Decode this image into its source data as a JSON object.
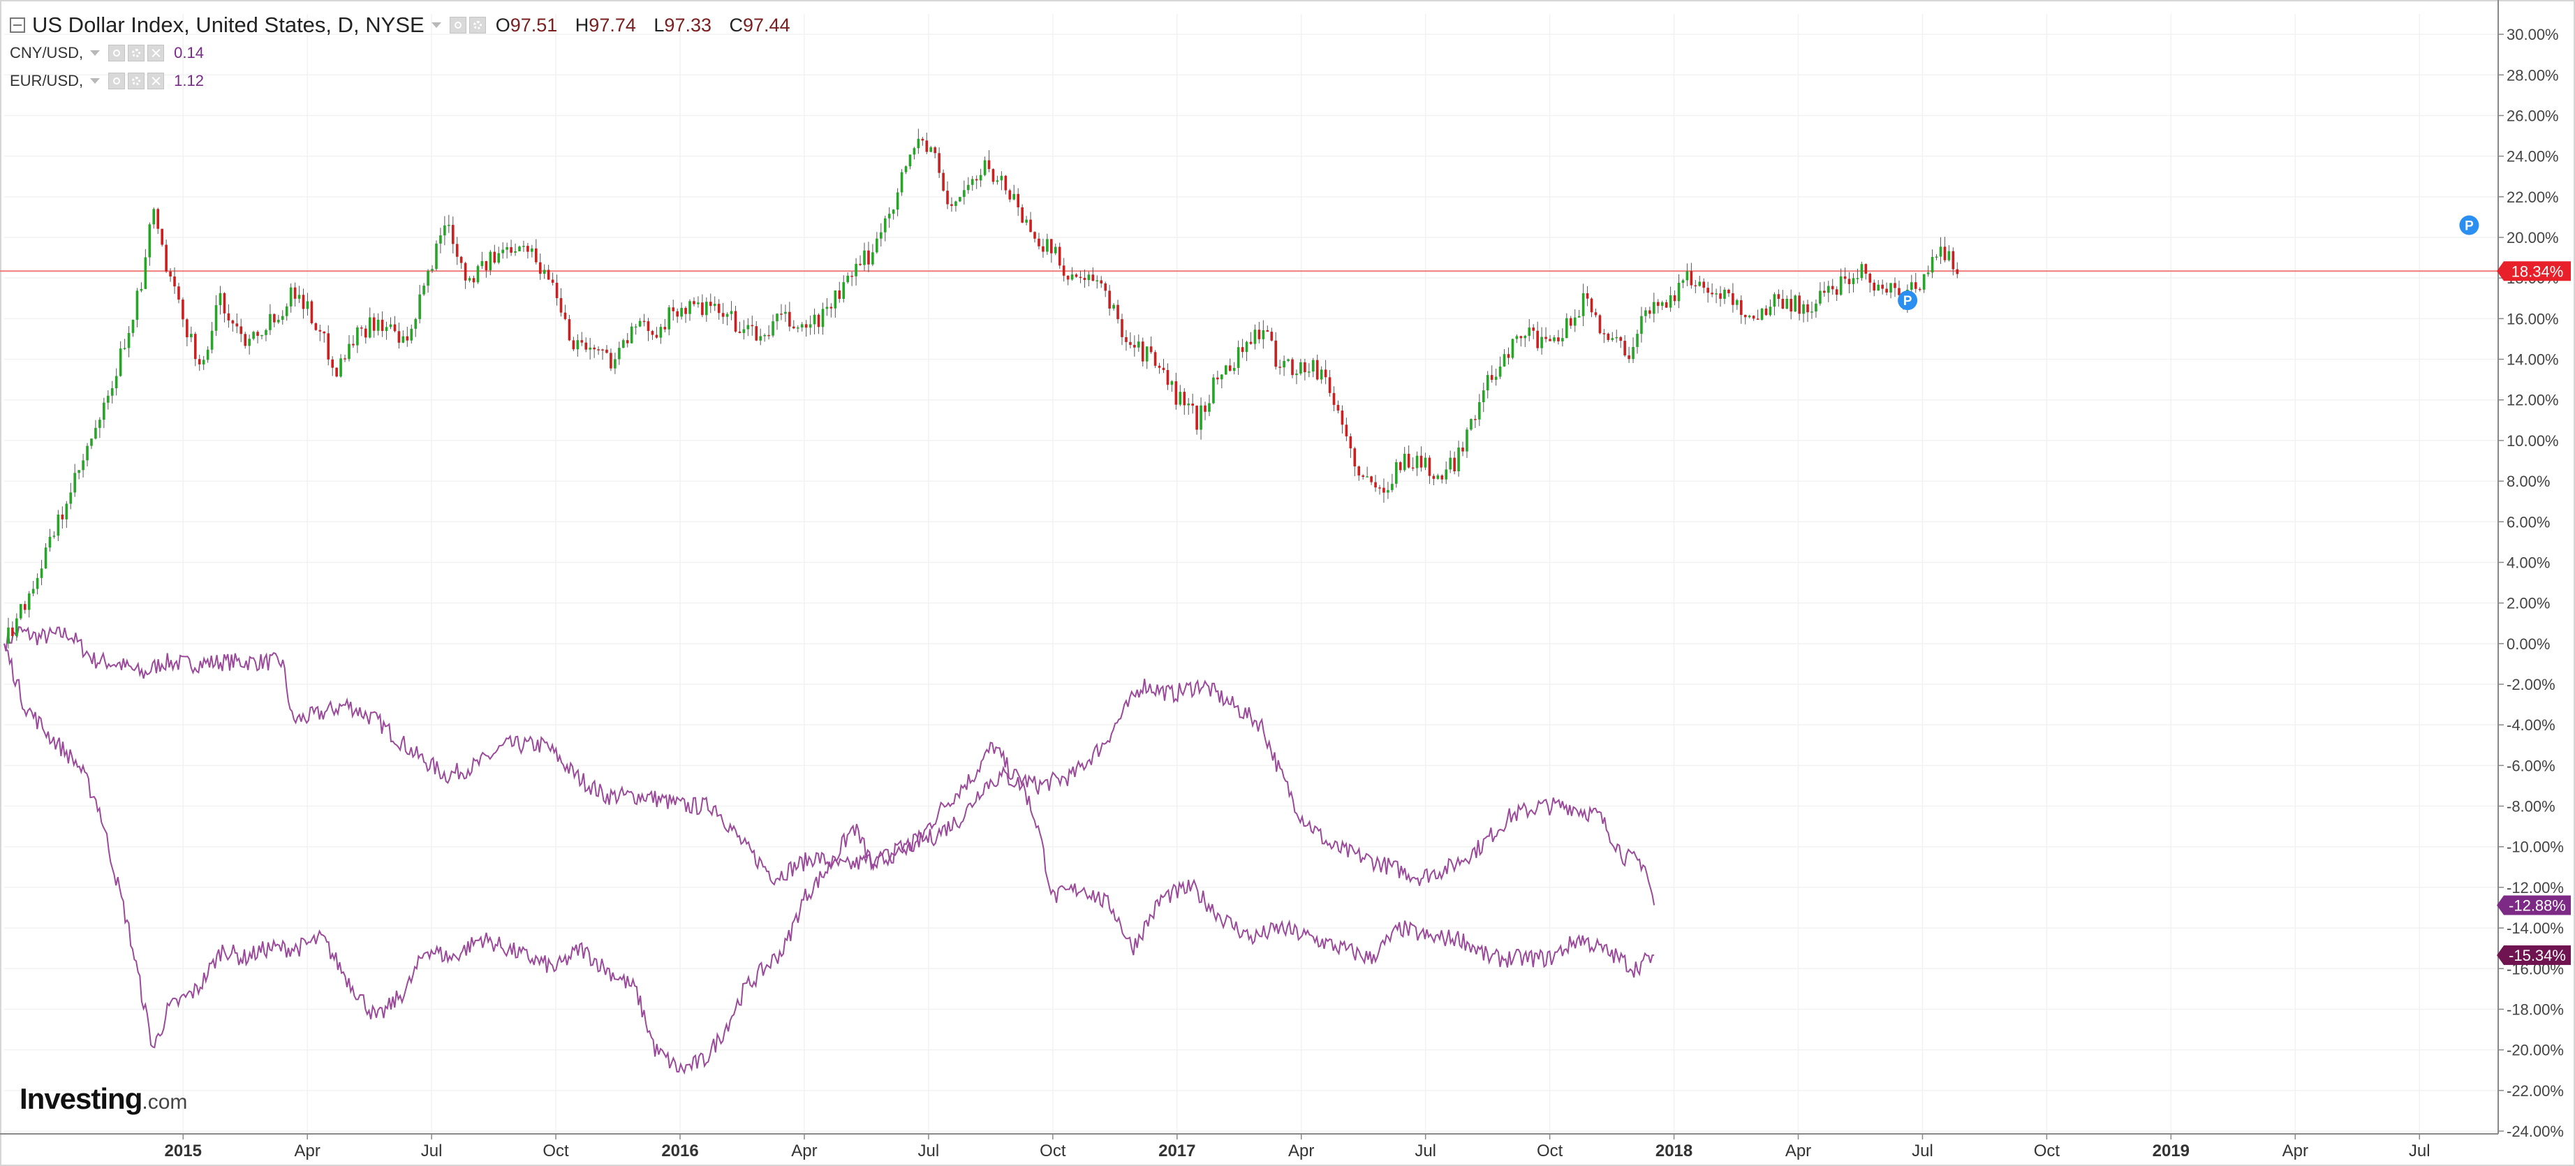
{
  "legend": {
    "main": {
      "title": "US Dollar Index, United States, D, NYSE",
      "o_label": "O",
      "o": "97.51",
      "h_label": "H",
      "h": "97.74",
      "l_label": "L",
      "l": "97.33",
      "c_label": "C",
      "c": "97.44"
    },
    "series1": {
      "name": "CNY/USD,",
      "value": "0.14"
    },
    "series2": {
      "name": "EUR/USD,",
      "value": "1.12"
    }
  },
  "logo": {
    "part1": "Investing",
    "part2": ".com"
  },
  "icons": {
    "collapse": "collapse-icon",
    "visibility": "eye-icon",
    "settings": "gear-icon",
    "remove": "close-icon",
    "marker": "p-marker-icon"
  },
  "colors": {
    "up": "#26a626",
    "down": "#cc1f1f",
    "compare": "#9b4a9b",
    "price_line": "#f07a7a",
    "price_badge": "#e8202a",
    "cny_badge": "#7d2a86",
    "eur_badge": "#6f1450",
    "marker": "#2a8ff0"
  },
  "chart_data": {
    "type": "line",
    "title": "US Dollar Index, United States, D, NYSE",
    "ylim": [
      -24,
      31
    ],
    "y_unit": "%",
    "grid": true,
    "legend_position": "top-left",
    "y_ticks": [
      "30.00%",
      "28.00%",
      "26.00%",
      "24.00%",
      "22.00%",
      "20.00%",
      "18.00%",
      "16.00%",
      "14.00%",
      "12.00%",
      "10.00%",
      "8.00%",
      "6.00%",
      "4.00%",
      "2.00%",
      "0.00%",
      "-2.00%",
      "-4.00%",
      "-6.00%",
      "-8.00%",
      "-10.00%",
      "-12.00%",
      "-14.00%",
      "-16.00%",
      "-18.00%",
      "-20.00%",
      "-22.00%",
      "-24.00%"
    ],
    "x_ticks": [
      {
        "label": "2015",
        "t": 0.25,
        "bold": true
      },
      {
        "label": "Apr",
        "t": 0.5,
        "bold": false
      },
      {
        "label": "Jul",
        "t": 0.75,
        "bold": false
      },
      {
        "label": "Oct",
        "t": 1.0,
        "bold": false
      },
      {
        "label": "2016",
        "t": 1.25,
        "bold": true
      },
      {
        "label": "Apr",
        "t": 1.5,
        "bold": false
      },
      {
        "label": "Jul",
        "t": 1.75,
        "bold": false
      },
      {
        "label": "Oct",
        "t": 2.0,
        "bold": false
      },
      {
        "label": "2017",
        "t": 2.25,
        "bold": true
      },
      {
        "label": "Apr",
        "t": 2.5,
        "bold": false
      },
      {
        "label": "Jul",
        "t": 2.75,
        "bold": false
      },
      {
        "label": "Oct",
        "t": 3.0,
        "bold": false
      },
      {
        "label": "2018",
        "t": 3.25,
        "bold": true
      },
      {
        "label": "Apr",
        "t": 3.5,
        "bold": false
      },
      {
        "label": "Jul",
        "t": 3.75,
        "bold": false
      },
      {
        "label": "Oct",
        "t": 4.0,
        "bold": false
      },
      {
        "label": "2019",
        "t": 4.25,
        "bold": true
      },
      {
        "label": "Apr",
        "t": 4.5,
        "bold": false
      },
      {
        "label": "Jul",
        "t": 4.75,
        "bold": false
      }
    ],
    "x_range": [
      -0.11,
      4.9
    ],
    "series": [
      {
        "name": "US Dollar Index",
        "style": "candles",
        "points": [
          [
            -0.11,
            0
          ],
          [
            -0.05,
            3
          ],
          [
            0.0,
            6
          ],
          [
            0.05,
            9
          ],
          [
            0.1,
            12
          ],
          [
            0.14,
            15.5
          ],
          [
            0.17,
            18
          ],
          [
            0.19,
            21.5
          ],
          [
            0.22,
            18
          ],
          [
            0.25,
            16
          ],
          [
            0.29,
            13.5
          ],
          [
            0.32,
            17
          ],
          [
            0.37,
            15
          ],
          [
            0.43,
            16
          ],
          [
            0.48,
            17.5
          ],
          [
            0.53,
            15
          ],
          [
            0.56,
            13.5
          ],
          [
            0.59,
            15
          ],
          [
            0.64,
            16
          ],
          [
            0.7,
            14.5
          ],
          [
            0.74,
            18
          ],
          [
            0.78,
            21
          ],
          [
            0.82,
            18
          ],
          [
            0.88,
            19
          ],
          [
            0.93,
            20
          ],
          [
            0.97,
            18.5
          ],
          [
            1.0,
            17.5
          ],
          [
            1.03,
            15
          ],
          [
            1.08,
            14.5
          ],
          [
            1.11,
            14
          ],
          [
            1.16,
            15.5
          ],
          [
            1.2,
            15.5
          ],
          [
            1.25,
            16.5
          ],
          [
            1.3,
            16.5
          ],
          [
            1.35,
            16
          ],
          [
            1.41,
            15
          ],
          [
            1.45,
            16
          ],
          [
            1.5,
            15.5
          ],
          [
            1.53,
            16
          ],
          [
            1.58,
            17.5
          ],
          [
            1.64,
            19.5
          ],
          [
            1.69,
            22.5
          ],
          [
            1.73,
            25
          ],
          [
            1.76,
            24
          ],
          [
            1.79,
            21.5
          ],
          [
            1.83,
            22.5
          ],
          [
            1.87,
            23.5
          ],
          [
            1.92,
            22
          ],
          [
            1.95,
            20.5
          ],
          [
            1.99,
            19.5
          ],
          [
            2.04,
            18
          ],
          [
            2.1,
            17.5
          ],
          [
            2.15,
            15
          ],
          [
            2.2,
            14
          ],
          [
            2.24,
            12.5
          ],
          [
            2.29,
            11
          ],
          [
            2.33,
            13
          ],
          [
            2.38,
            14.5
          ],
          [
            2.42,
            15.5
          ],
          [
            2.45,
            14
          ],
          [
            2.5,
            13.5
          ],
          [
            2.54,
            13.5
          ],
          [
            2.58,
            11
          ],
          [
            2.62,
            8
          ],
          [
            2.66,
            7.5
          ],
          [
            2.7,
            9
          ],
          [
            2.74,
            9
          ],
          [
            2.78,
            8
          ],
          [
            2.81,
            9
          ],
          [
            2.85,
            11.5
          ],
          [
            2.9,
            14
          ],
          [
            2.95,
            15.5
          ],
          [
            2.99,
            14.5
          ],
          [
            3.02,
            15
          ],
          [
            3.07,
            17
          ],
          [
            3.12,
            15
          ],
          [
            3.16,
            14.5
          ],
          [
            3.2,
            16.5
          ],
          [
            3.24,
            17
          ],
          [
            3.28,
            18
          ],
          [
            3.32,
            17.5
          ],
          [
            3.36,
            17
          ],
          [
            3.41,
            16
          ],
          [
            3.46,
            17
          ],
          [
            3.52,
            16.5
          ],
          [
            3.57,
            17.5
          ],
          [
            3.62,
            18.5
          ],
          [
            3.67,
            17.5
          ],
          [
            3.71,
            17
          ],
          [
            3.76,
            18.3
          ],
          [
            3.79,
            19.5
          ],
          [
            3.82,
            18.3
          ]
        ]
      },
      {
        "name": "CNY/USD",
        "style": "line",
        "points": [
          [
            -0.11,
            0
          ],
          [
            -0.08,
            0.6
          ],
          [
            -0.04,
            0.3
          ],
          [
            0.02,
            0.5
          ],
          [
            0.07,
            -0.8
          ],
          [
            0.12,
            -1
          ],
          [
            0.17,
            -1.5
          ],
          [
            0.21,
            -0.9
          ],
          [
            0.26,
            -1
          ],
          [
            0.33,
            -0.9
          ],
          [
            0.45,
            -0.9
          ],
          [
            0.47,
            -3.8
          ],
          [
            0.52,
            -3.5
          ],
          [
            0.58,
            -3
          ],
          [
            0.64,
            -3.8
          ],
          [
            0.72,
            -5.5
          ],
          [
            0.78,
            -6.5
          ],
          [
            0.84,
            -6
          ],
          [
            0.9,
            -5
          ],
          [
            0.98,
            -5
          ],
          [
            1.04,
            -6.5
          ],
          [
            1.1,
            -7.5
          ],
          [
            1.18,
            -7.5
          ],
          [
            1.26,
            -8
          ],
          [
            1.32,
            -8
          ],
          [
            1.38,
            -10
          ],
          [
            1.44,
            -11.5
          ],
          [
            1.52,
            -10.5
          ],
          [
            1.58,
            -11
          ],
          [
            1.66,
            -10.5
          ],
          [
            1.72,
            -10
          ],
          [
            1.78,
            -8
          ],
          [
            1.84,
            -6.5
          ],
          [
            1.88,
            -5
          ],
          [
            1.92,
            -6.5
          ],
          [
            1.97,
            -7
          ],
          [
            2.04,
            -6.5
          ],
          [
            2.1,
            -5
          ],
          [
            2.14,
            -3.5
          ],
          [
            2.18,
            -2
          ],
          [
            2.24,
            -2.5
          ],
          [
            2.3,
            -2
          ],
          [
            2.36,
            -3
          ],
          [
            2.42,
            -4
          ],
          [
            2.46,
            -6.5
          ],
          [
            2.5,
            -8.5
          ],
          [
            2.56,
            -10
          ],
          [
            2.62,
            -10.5
          ],
          [
            2.68,
            -11
          ],
          [
            2.74,
            -11.5
          ],
          [
            2.8,
            -11
          ],
          [
            2.86,
            -10
          ],
          [
            2.92,
            -8.5
          ],
          [
            2.98,
            -8
          ],
          [
            3.04,
            -8
          ],
          [
            3.1,
            -8.5
          ],
          [
            3.15,
            -10.5
          ],
          [
            3.19,
            -10.8
          ],
          [
            3.21,
            -12.88
          ]
        ]
      },
      {
        "name": "EUR/USD",
        "style": "line",
        "points": [
          [
            -0.11,
            0
          ],
          [
            -0.07,
            -3
          ],
          [
            -0.02,
            -4.5
          ],
          [
            0.04,
            -6
          ],
          [
            0.08,
            -8
          ],
          [
            0.12,
            -12
          ],
          [
            0.14,
            -14
          ],
          [
            0.19,
            -20
          ],
          [
            0.22,
            -18
          ],
          [
            0.28,
            -17
          ],
          [
            0.33,
            -15
          ],
          [
            0.37,
            -15.5
          ],
          [
            0.42,
            -15
          ],
          [
            0.48,
            -15
          ],
          [
            0.53,
            -14.5
          ],
          [
            0.58,
            -16.5
          ],
          [
            0.64,
            -18.5
          ],
          [
            0.7,
            -17
          ],
          [
            0.74,
            -15
          ],
          [
            0.79,
            -15.5
          ],
          [
            0.85,
            -14.5
          ],
          [
            0.9,
            -15
          ],
          [
            0.95,
            -15.5
          ],
          [
            1.0,
            -16
          ],
          [
            1.05,
            -15
          ],
          [
            1.1,
            -16
          ],
          [
            1.16,
            -17
          ],
          [
            1.2,
            -20
          ],
          [
            1.25,
            -21
          ],
          [
            1.3,
            -20.5
          ],
          [
            1.34,
            -19
          ],
          [
            1.38,
            -17
          ],
          [
            1.42,
            -16
          ],
          [
            1.46,
            -15
          ],
          [
            1.5,
            -12.5
          ],
          [
            1.55,
            -11
          ],
          [
            1.6,
            -9
          ],
          [
            1.64,
            -11
          ],
          [
            1.7,
            -10
          ],
          [
            1.76,
            -9.5
          ],
          [
            1.82,
            -8.5
          ],
          [
            1.86,
            -7
          ],
          [
            1.9,
            -6.5
          ],
          [
            1.94,
            -7
          ],
          [
            1.97,
            -9
          ],
          [
            2.0,
            -12.5
          ],
          [
            2.06,
            -12
          ],
          [
            2.12,
            -13
          ],
          [
            2.16,
            -15
          ],
          [
            2.22,
            -12.5
          ],
          [
            2.28,
            -12
          ],
          [
            2.34,
            -13.5
          ],
          [
            2.4,
            -14.5
          ],
          [
            2.46,
            -14
          ],
          [
            2.52,
            -14.5
          ],
          [
            2.58,
            -15
          ],
          [
            2.64,
            -15.5
          ],
          [
            2.7,
            -14
          ],
          [
            2.76,
            -14.5
          ],
          [
            2.82,
            -14.5
          ],
          [
            2.88,
            -15.5
          ],
          [
            2.94,
            -15.5
          ],
          [
            3.0,
            -15.5
          ],
          [
            3.06,
            -14.5
          ],
          [
            3.1,
            -15
          ],
          [
            3.14,
            -15.5
          ],
          [
            3.17,
            -16
          ],
          [
            3.21,
            -15.34
          ]
        ]
      }
    ],
    "price_line": 18.34,
    "last_value_badges": [
      {
        "label": "18.34%",
        "value": 18.34,
        "series": "US Dollar Index"
      },
      {
        "label": "-12.88%",
        "value": -12.88,
        "series": "CNY/USD"
      },
      {
        "label": "-15.34%",
        "value": -15.34,
        "series": "EUR/USD"
      }
    ],
    "markers": [
      {
        "label": "P",
        "t": 3.72,
        "value": 16.9
      },
      {
        "label": "P",
        "t": 4.85,
        "value": 20.6
      }
    ]
  }
}
